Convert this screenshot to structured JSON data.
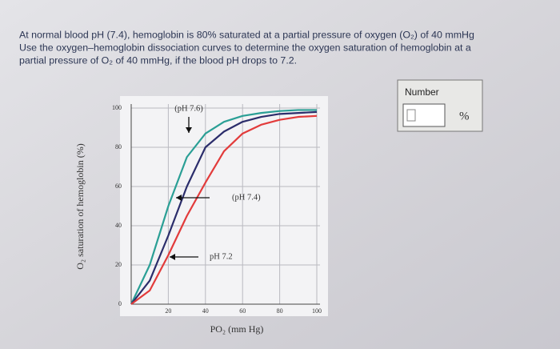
{
  "question": [
    "At normal blood pH (7.4), hemoglobin is 80% saturated at a partial pressure of oxygen (O₂) of 40 mmHg",
    "Use the oxygen–hemoglobin dissociation curves to determine the oxygen saturation of hemoglobin at a",
    "partial pressure of O₂ of 40 mmHg, if the blood pH drops to 7.2."
  ],
  "answer": {
    "label": "Number",
    "unit": "%"
  },
  "chart_data": {
    "type": "line",
    "xlabel": "PO₂ (mm Hg)",
    "ylabel": "O₂ saturation of hemoglobin (%)",
    "x": [
      0,
      10,
      20,
      30,
      40,
      50,
      60,
      70,
      80,
      90,
      100
    ],
    "series": [
      {
        "name": "(pH 7.6)",
        "color": "#2a9f95",
        "values": [
          0,
          20,
          50,
          75,
          87,
          93,
          96,
          97.5,
          98.5,
          99,
          99
        ]
      },
      {
        "name": "(pH 7.4)",
        "color": "#2b2d6b",
        "values": [
          0,
          12,
          35,
          60,
          80,
          88,
          93,
          95.5,
          97,
          97.5,
          98
        ]
      },
      {
        "name": "pH 7.2",
        "color": "#e23b3b",
        "values": [
          0,
          7,
          25,
          45,
          62,
          78,
          87,
          91.5,
          94,
          95.5,
          96
        ]
      }
    ],
    "xlim": [
      0,
      100
    ],
    "ylim": [
      0,
      100
    ],
    "xticks": [
      20,
      40,
      60,
      80,
      100
    ],
    "yticks": [
      0,
      20,
      40,
      60,
      80,
      100
    ],
    "grid": true
  }
}
